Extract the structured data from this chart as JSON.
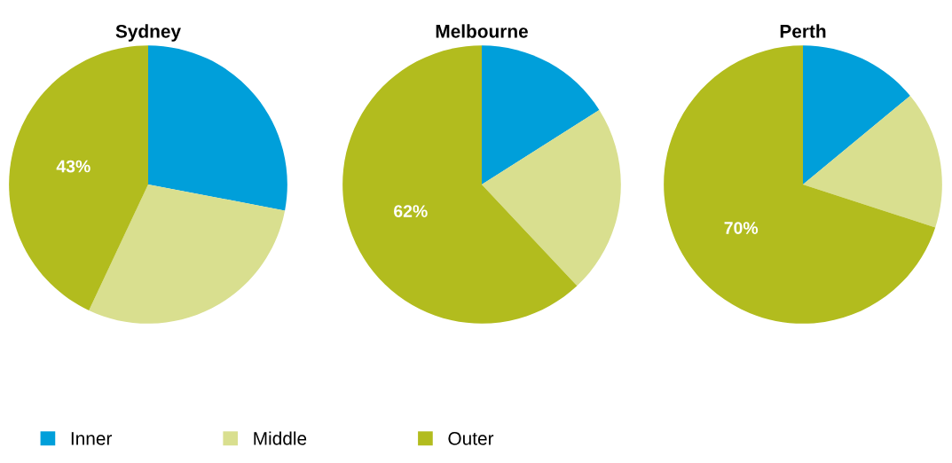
{
  "chart_data": [
    {
      "type": "pie",
      "title": "Sydney",
      "categories": [
        "Inner",
        "Middle",
        "Outer"
      ],
      "values": [
        28,
        29,
        43
      ],
      "colors": [
        "#009fda",
        "#d9df8f",
        "#b2bc1e"
      ],
      "value_labels": [
        null,
        null,
        "43%"
      ],
      "legend": "bottom"
    },
    {
      "type": "pie",
      "title": "Melbourne",
      "categories": [
        null,
        null,
        null
      ],
      "values": [
        16,
        22,
        62
      ],
      "colors": [
        "#009fda",
        "#d9df8f",
        "#b2bc1e"
      ],
      "value_labels": [
        null,
        null,
        "62%"
      ]
    },
    {
      "type": "pie",
      "title": "Perth",
      "categories": [
        null,
        null,
        null
      ],
      "values": [
        14,
        16,
        70
      ],
      "colors": [
        "#009fda",
        "#d9df8f",
        "#b2bc1e"
      ],
      "value_labels": [
        null,
        null,
        "70%"
      ]
    }
  ]
}
